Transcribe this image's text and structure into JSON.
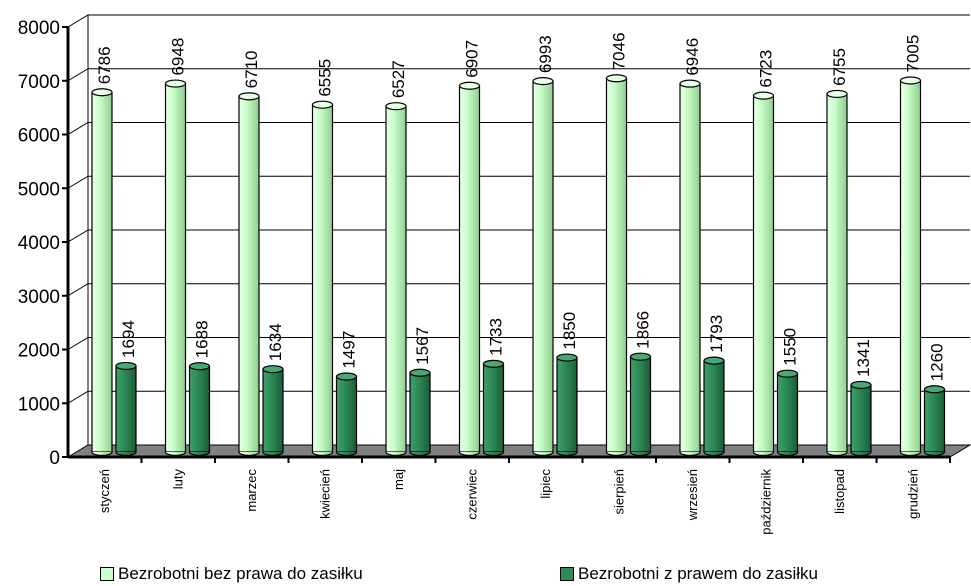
{
  "chart_data": {
    "type": "bar",
    "categories": [
      "styczeń",
      "luty",
      "marzec",
      "kwiecień",
      "maj",
      "czerwiec",
      "lipiec",
      "sierpień",
      "wrzesień",
      "październik",
      "listopad",
      "grudzień"
    ],
    "series": [
      {
        "name": "Bezrobotni bez prawa do zasiłku",
        "values": [
          6786,
          6948,
          6710,
          6555,
          6527,
          6907,
          6993,
          7046,
          6946,
          6723,
          6755,
          7005
        ],
        "color": "#ccffcc"
      },
      {
        "name": "Bezrobotni z prawem do zasiłku",
        "values": [
          1694,
          1688,
          1634,
          1497,
          1567,
          1733,
          1850,
          1866,
          1793,
          1550,
          1341,
          1260
        ],
        "color": "#2e8b57"
      }
    ],
    "y_ticks": [
      "0",
      "1000",
      "2000",
      "3000",
      "4000",
      "5000",
      "6000",
      "7000",
      "8000"
    ],
    "ylim": [
      0,
      8000
    ],
    "grid": true,
    "legend_position": "bottom"
  },
  "legend": {
    "series1_label": "Bezrobotni bez prawa do zasiłku",
    "series2_label": "Bezrobotni z prawem do zasiłku"
  }
}
